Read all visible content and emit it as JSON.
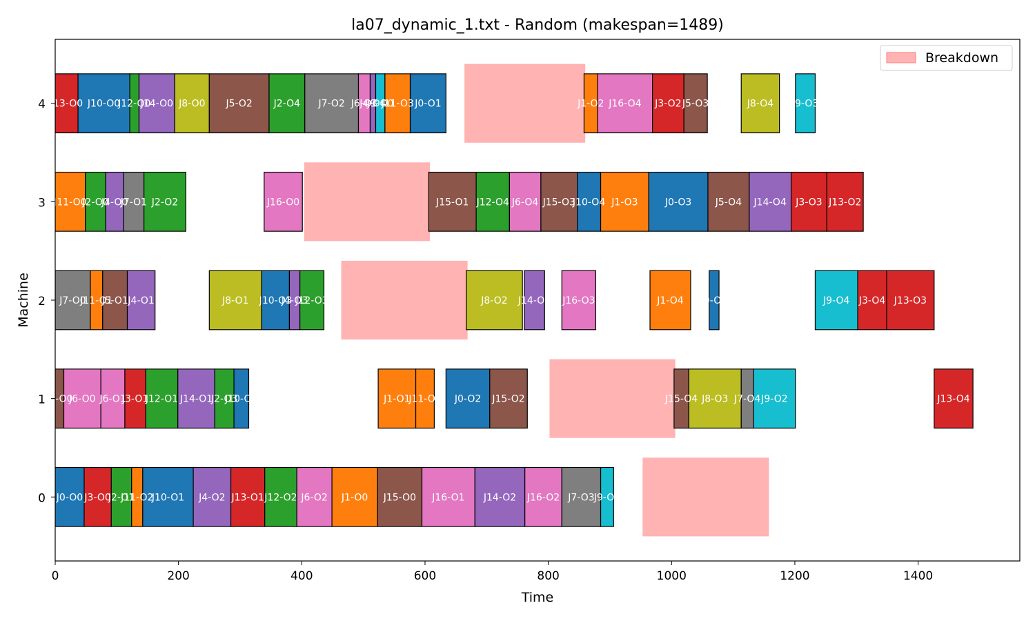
{
  "chart_data": {
    "type": "gantt",
    "title": "la07_dynamic_1.txt - Random (makespan=1489)",
    "xlabel": "Time",
    "ylabel": "Machine",
    "xlim": [
      0,
      1565
    ],
    "ylim": [
      -0.65,
      4.65
    ],
    "xticks": [
      0,
      200,
      400,
      600,
      800,
      1000,
      1200,
      1400
    ],
    "yticks": [
      0,
      1,
      2,
      3,
      4
    ],
    "legend": {
      "position": "top-right",
      "label": "Breakdown",
      "color": "#ffb3b3"
    },
    "job_colors": {
      "J0": "#1f77b4",
      "J1": "#ff7f0e",
      "J2": "#2ca02c",
      "J3": "#d62728",
      "J4": "#9467bd",
      "J5": "#8c564b",
      "J6": "#e377c2",
      "J7": "#7f7f7f",
      "J8": "#bcbd22",
      "J9": "#17becf",
      "J10": "#1f77b4",
      "J11": "#ff7f0e",
      "J12": "#2ca02c",
      "J13": "#d62728",
      "J14": "#9467bd",
      "J15": "#8c564b",
      "J16": "#e377c2"
    },
    "operations": [
      {
        "m": 0,
        "job": "J0",
        "label": "J0-O0",
        "start": 0,
        "end": 47
      },
      {
        "m": 0,
        "job": "J3",
        "label": "J3-O0",
        "start": 47,
        "end": 91
      },
      {
        "m": 0,
        "job": "J2",
        "label": "J2-O1",
        "start": 91,
        "end": 124
      },
      {
        "m": 0,
        "job": "J11",
        "label": "J11-O2",
        "start": 124,
        "end": 142
      },
      {
        "m": 0,
        "job": "J10",
        "label": "J10-O1",
        "start": 142,
        "end": 224
      },
      {
        "m": 0,
        "job": "J4",
        "label": "J4-O2",
        "start": 224,
        "end": 285
      },
      {
        "m": 0,
        "job": "J13",
        "label": "J13-O1",
        "start": 285,
        "end": 340
      },
      {
        "m": 0,
        "job": "J12",
        "label": "J12-O2",
        "start": 340,
        "end": 392
      },
      {
        "m": 0,
        "job": "J6",
        "label": "J6-O2",
        "start": 392,
        "end": 449
      },
      {
        "m": 0,
        "job": "J1",
        "label": "J1-O0",
        "start": 449,
        "end": 523
      },
      {
        "m": 0,
        "job": "J15",
        "label": "J15-O0",
        "start": 523,
        "end": 595
      },
      {
        "m": 0,
        "job": "J16",
        "label": "J16-O1",
        "start": 595,
        "end": 681
      },
      {
        "m": 0,
        "job": "J14",
        "label": "J14-O2",
        "start": 681,
        "end": 762
      },
      {
        "m": 0,
        "job": "J16",
        "label": "J16-O2",
        "start": 762,
        "end": 822
      },
      {
        "m": 0,
        "job": "J7",
        "label": "J7-O3",
        "start": 822,
        "end": 885
      },
      {
        "m": 0,
        "job": "J9",
        "label": "J9-O1",
        "start": 885,
        "end": 906
      },
      {
        "m": 1,
        "job": "J5",
        "label": "J5-O0",
        "start": 0,
        "end": 14
      },
      {
        "m": 1,
        "job": "J6",
        "label": "J6-O0",
        "start": 14,
        "end": 74
      },
      {
        "m": 1,
        "job": "J6",
        "label": "J6-O1",
        "start": 74,
        "end": 113
      },
      {
        "m": 1,
        "job": "J3",
        "label": "J3-O1",
        "start": 113,
        "end": 147
      },
      {
        "m": 1,
        "job": "J12",
        "label": "J12-O1",
        "start": 147,
        "end": 199
      },
      {
        "m": 1,
        "job": "J14",
        "label": "J14-O1",
        "start": 199,
        "end": 259
      },
      {
        "m": 1,
        "job": "J2",
        "label": "J2-O3",
        "start": 259,
        "end": 290
      },
      {
        "m": 1,
        "job": "J10",
        "label": "J10-O2",
        "start": 290,
        "end": 314
      },
      {
        "m": 1,
        "job": "J1",
        "label": "J1-O1",
        "start": 524,
        "end": 585
      },
      {
        "m": 1,
        "job": "J11",
        "label": "J11-O3",
        "start": 585,
        "end": 615
      },
      {
        "m": 1,
        "job": "J0",
        "label": "J0-O2",
        "start": 634,
        "end": 705
      },
      {
        "m": 1,
        "job": "J15",
        "label": "J15-O2",
        "start": 705,
        "end": 766
      },
      {
        "m": 1,
        "job": "J15",
        "label": "J15-O4",
        "start": 1004,
        "end": 1028
      },
      {
        "m": 1,
        "job": "J8",
        "label": "J8-O3",
        "start": 1028,
        "end": 1113
      },
      {
        "m": 1,
        "job": "J7",
        "label": "J7-O4",
        "start": 1113,
        "end": 1133
      },
      {
        "m": 1,
        "job": "J9",
        "label": "J9-O2",
        "start": 1133,
        "end": 1201
      },
      {
        "m": 1,
        "job": "J13",
        "label": "J13-O4",
        "start": 1426,
        "end": 1489
      },
      {
        "m": 2,
        "job": "J7",
        "label": "J7-O0",
        "start": 0,
        "end": 57
      },
      {
        "m": 2,
        "job": "J11",
        "label": "J11-O1",
        "start": 57,
        "end": 77
      },
      {
        "m": 2,
        "job": "J5",
        "label": "J5-O1",
        "start": 77,
        "end": 117
      },
      {
        "m": 2,
        "job": "J4",
        "label": "J4-O1",
        "start": 117,
        "end": 162
      },
      {
        "m": 2,
        "job": "J8",
        "label": "J8-O1",
        "start": 250,
        "end": 335
      },
      {
        "m": 2,
        "job": "J10",
        "label": "J10-O3",
        "start": 335,
        "end": 380
      },
      {
        "m": 2,
        "job": "J4",
        "label": "J4-O3",
        "start": 380,
        "end": 397
      },
      {
        "m": 2,
        "job": "J12",
        "label": "J12-O3",
        "start": 397,
        "end": 436
      },
      {
        "m": 2,
        "job": "J8",
        "label": "J8-O2",
        "start": 667,
        "end": 758
      },
      {
        "m": 2,
        "job": "J14",
        "label": "J14-O3",
        "start": 761,
        "end": 794
      },
      {
        "m": 2,
        "job": "J16",
        "label": "J16-O3",
        "start": 822,
        "end": 877
      },
      {
        "m": 2,
        "job": "J1",
        "label": "J1-O4",
        "start": 965,
        "end": 1031
      },
      {
        "m": 2,
        "job": "J0",
        "label": "J0-O4",
        "start": 1061,
        "end": 1077
      },
      {
        "m": 2,
        "job": "J9",
        "label": "J9-O4",
        "start": 1233,
        "end": 1302
      },
      {
        "m": 2,
        "job": "J3",
        "label": "J3-O4",
        "start": 1302,
        "end": 1349
      },
      {
        "m": 2,
        "job": "J13",
        "label": "J13-O3",
        "start": 1349,
        "end": 1426
      },
      {
        "m": 3,
        "job": "J11",
        "label": "J11-O0",
        "start": 0,
        "end": 49
      },
      {
        "m": 3,
        "job": "J2",
        "label": "J2-O0",
        "start": 49,
        "end": 82
      },
      {
        "m": 3,
        "job": "J4",
        "label": "J4-O0",
        "start": 82,
        "end": 111
      },
      {
        "m": 3,
        "job": "J7",
        "label": "J7-O1",
        "start": 111,
        "end": 144
      },
      {
        "m": 3,
        "job": "J2",
        "label": "J2-O2",
        "start": 144,
        "end": 212
      },
      {
        "m": 3,
        "job": "J16",
        "label": "J16-O0",
        "start": 339,
        "end": 401
      },
      {
        "m": 3,
        "job": "J15",
        "label": "J15-O1",
        "start": 606,
        "end": 683
      },
      {
        "m": 3,
        "job": "J12",
        "label": "J12-O4",
        "start": 683,
        "end": 737
      },
      {
        "m": 3,
        "job": "J6",
        "label": "J6-O4",
        "start": 737,
        "end": 788
      },
      {
        "m": 3,
        "job": "J15",
        "label": "J15-O3",
        "start": 788,
        "end": 847
      },
      {
        "m": 3,
        "job": "J10",
        "label": "J10-O4",
        "start": 847,
        "end": 885
      },
      {
        "m": 3,
        "job": "J1",
        "label": "J1-O3",
        "start": 885,
        "end": 963
      },
      {
        "m": 3,
        "job": "J0",
        "label": "J0-O3",
        "start": 963,
        "end": 1059
      },
      {
        "m": 3,
        "job": "J5",
        "label": "J5-O4",
        "start": 1059,
        "end": 1126
      },
      {
        "m": 3,
        "job": "J14",
        "label": "J14-O4",
        "start": 1126,
        "end": 1194
      },
      {
        "m": 3,
        "job": "J3",
        "label": "J3-O3",
        "start": 1194,
        "end": 1252
      },
      {
        "m": 3,
        "job": "J13",
        "label": "J13-O2",
        "start": 1252,
        "end": 1311
      },
      {
        "m": 4,
        "job": "J13",
        "label": "J13-O0",
        "start": 0,
        "end": 37
      },
      {
        "m": 4,
        "job": "J10",
        "label": "J10-O0",
        "start": 37,
        "end": 121
      },
      {
        "m": 4,
        "job": "J12",
        "label": "J12-O0",
        "start": 121,
        "end": 136
      },
      {
        "m": 4,
        "job": "J14",
        "label": "J14-O0",
        "start": 136,
        "end": 194
      },
      {
        "m": 4,
        "job": "J8",
        "label": "J8-O0",
        "start": 194,
        "end": 250
      },
      {
        "m": 4,
        "job": "J5",
        "label": "J5-O2",
        "start": 250,
        "end": 347
      },
      {
        "m": 4,
        "job": "J2",
        "label": "J2-O4",
        "start": 347,
        "end": 405
      },
      {
        "m": 4,
        "job": "J7",
        "label": "J7-O2",
        "start": 405,
        "end": 492
      },
      {
        "m": 4,
        "job": "J6",
        "label": "J6-O3",
        "start": 492,
        "end": 511
      },
      {
        "m": 4,
        "job": "J4",
        "label": "J4-O4",
        "start": 511,
        "end": 520
      },
      {
        "m": 4,
        "job": "J9",
        "label": "J9-O0",
        "start": 520,
        "end": 535
      },
      {
        "m": 4,
        "job": "J11",
        "label": "J11-O3",
        "start": 535,
        "end": 576
      },
      {
        "m": 4,
        "job": "J0",
        "label": "J0-O1",
        "start": 576,
        "end": 634
      },
      {
        "m": 4,
        "job": "J1",
        "label": "J1-O2",
        "start": 858,
        "end": 880
      },
      {
        "m": 4,
        "job": "J16",
        "label": "J16-O4",
        "start": 880,
        "end": 969
      },
      {
        "m": 4,
        "job": "J3",
        "label": "J3-O2",
        "start": 969,
        "end": 1020
      },
      {
        "m": 4,
        "job": "J5",
        "label": "J5-O3",
        "start": 1020,
        "end": 1058
      },
      {
        "m": 4,
        "job": "J8",
        "label": "J8-O4",
        "start": 1113,
        "end": 1175
      },
      {
        "m": 4,
        "job": "J9",
        "label": "J9-O3",
        "start": 1201,
        "end": 1233
      }
    ],
    "breakdowns": [
      {
        "m": 0,
        "start": 953,
        "end": 1158
      },
      {
        "m": 1,
        "start": 802,
        "end": 1006
      },
      {
        "m": 2,
        "start": 464,
        "end": 669
      },
      {
        "m": 3,
        "start": 404,
        "end": 608
      },
      {
        "m": 4,
        "start": 664,
        "end": 860
      }
    ]
  }
}
